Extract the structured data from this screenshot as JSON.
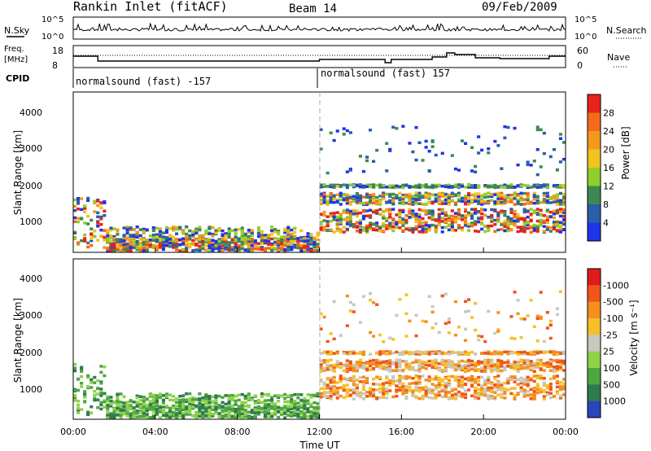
{
  "header": {
    "station": "Rankin Inlet (fitACF)",
    "beam": "Beam 14",
    "date": "09/Feb/2009"
  },
  "noise_panel": {
    "left_label": "N.Sky",
    "left_ticks": [
      "10^5",
      "10^0"
    ],
    "right_label": "N.Search",
    "right_ticks": [
      "10^5",
      "10^0"
    ]
  },
  "freq_panel": {
    "left_label_1": "Freq.",
    "left_label_2": "[MHz]",
    "left_ticks": [
      "18",
      "8"
    ],
    "right_label": "Nave",
    "right_ticks": [
      "60",
      "0"
    ]
  },
  "cpid": {
    "label": "CPID",
    "segments": [
      {
        "text": "normalsound (fast) -157",
        "start_hour": 0,
        "end_hour": 12
      },
      {
        "text": "normalsound (fast) 157",
        "start_hour": 12,
        "end_hour": 24
      }
    ]
  },
  "chart_data": [
    {
      "type": "heatmap",
      "title": "",
      "xlabel": "",
      "ylabel": "Slant Range [km]",
      "xlim_hours": [
        0,
        24
      ],
      "ylim_km": [
        180,
        4600
      ],
      "y_ticks": [
        "1000",
        "2000",
        "3000",
        "4000"
      ],
      "colorbar_label": "Power [dB]",
      "colorbar_ticks": [
        "4",
        "8",
        "12",
        "16",
        "20",
        "24",
        "28"
      ],
      "colors": [
        "#1f34e8",
        "#2b5ea8",
        "#3d8a50",
        "#8fcf2c",
        "#f0c31e",
        "#f39a1c",
        "#f46a1a",
        "#e8231b"
      ]
    },
    {
      "type": "heatmap",
      "title": "",
      "xlabel": "Time UT",
      "ylabel": "Slant Range [km]",
      "xlim_hours": [
        0,
        24
      ],
      "ylim_km": [
        180,
        4600
      ],
      "y_ticks": [
        "1000",
        "2000",
        "3000",
        "4000"
      ],
      "x_ticks": [
        "00:00",
        "04:00",
        "08:00",
        "12:00",
        "16:00",
        "20:00",
        "00:00"
      ],
      "colorbar_label": "Velocity [m s⁻¹]",
      "colorbar_ticks": [
        "1000",
        "500",
        "100",
        "25",
        "-25",
        "-100",
        "-500",
        "-1000"
      ],
      "colors": [
        "#2a46b8",
        "#2f7b50",
        "#4ea640",
        "#8fd34a",
        "#c8c8c0",
        "#f5c12a",
        "#f58f1f",
        "#f0561a",
        "#e01b1b"
      ]
    }
  ]
}
